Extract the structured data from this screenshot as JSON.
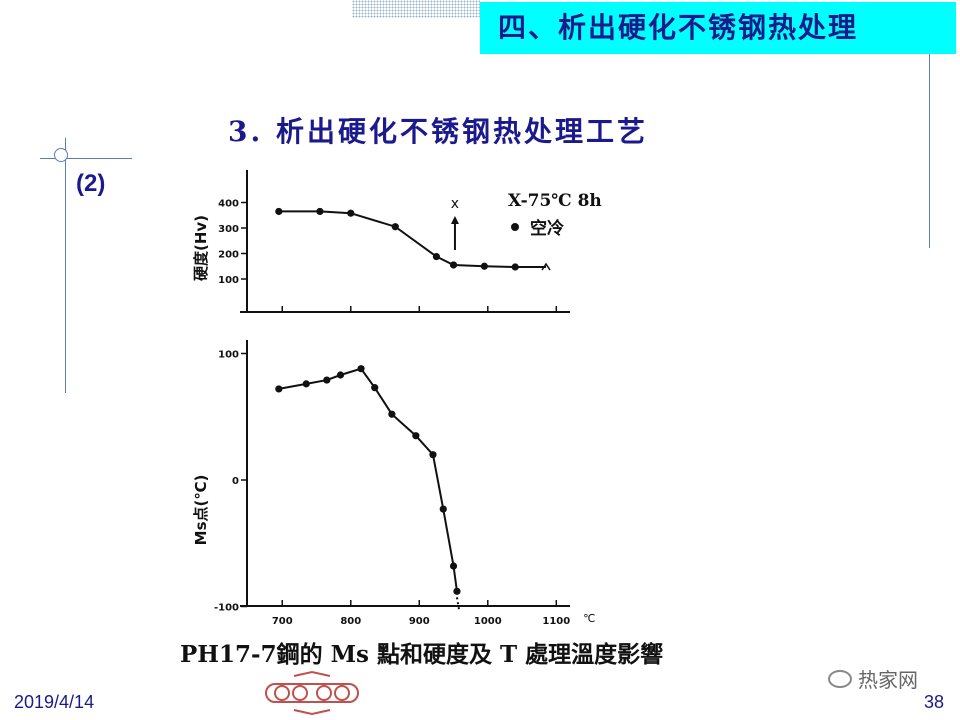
{
  "slide": {
    "section_title": "四、析出硬化不锈钢热处理",
    "subtitle": "3. 析出硬化不锈钢热处理工艺",
    "item_number": "(2)",
    "date": "2019/4/14",
    "page_number": "38",
    "watermark": "热家网"
  },
  "chart_data": [
    {
      "type": "line",
      "ylabel": "硬度(Hv)",
      "yticks": [
        "400",
        "300",
        "200",
        "100"
      ],
      "ylim": [
        40,
        460
      ],
      "xlim": [
        650,
        1120
      ],
      "legend": {
        "arrow_label": "X-75℃ 8h",
        "dot_label": "空冷",
        "position": "top-right"
      },
      "series": [
        {
          "x": [
            695,
            755,
            800,
            865,
            925,
            950,
            995,
            1040,
            1085
          ],
          "y": [
            365,
            365,
            358,
            305,
            188,
            155,
            150,
            147,
            147
          ]
        }
      ],
      "annotation_arrow": {
        "x": 955,
        "from_y": 210,
        "to_y": 310
      }
    },
    {
      "type": "line",
      "ylabel": "Ms点(℃)",
      "yticks": [
        "100",
        "0",
        "-100"
      ],
      "ylim": [
        -100,
        100
      ],
      "xlim": [
        650,
        1120
      ],
      "xticks": [
        "700",
        "800",
        "900",
        "1000",
        "1100"
      ],
      "x_unit": "℃",
      "series": [
        {
          "x": [
            695,
            735,
            765,
            785,
            815,
            835,
            860,
            895,
            920,
            935,
            950,
            955
          ],
          "y": [
            72,
            76,
            79,
            83,
            88,
            73,
            52,
            35,
            20,
            -23,
            -68,
            -88
          ]
        }
      ]
    }
  ],
  "caption": "PH17-7鋼的 Ms 點和硬度及 T 處理溫度影響",
  "colors": {
    "title_bg": "#00ffff",
    "title_text": "#1a1a8c",
    "rule": "#5a7fb0",
    "plot": "#111111"
  }
}
